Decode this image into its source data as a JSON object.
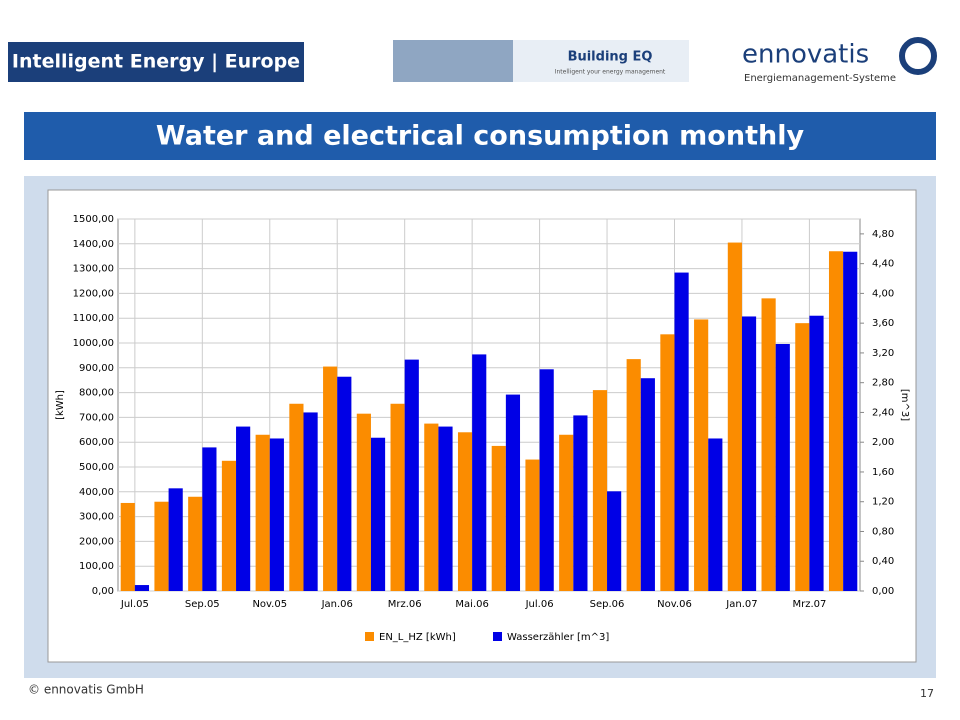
{
  "logos": {
    "left": "Intelligent Energy | Europe",
    "middle": "Building EQ",
    "middle_sub": "Intelligent your energy management",
    "right": "ennovatis",
    "right_sub": "Energiemanagement-Systeme"
  },
  "footer": {
    "copyright": "© ennovatis GmbH",
    "page": "17"
  },
  "chart_data": {
    "type": "bar",
    "title": "Water and electrical consumption monthly",
    "ylabel": "[kWh]",
    "y2label": "[m^3]",
    "categories": [
      "Jul.05",
      null,
      "Sep.05",
      null,
      "Nov.05",
      null,
      "Jan.06",
      null,
      "Mrz.06",
      null,
      "Mai.06",
      null,
      "Jul.06",
      null,
      "Sep.06",
      null,
      "Nov.06",
      null,
      "Jan.07",
      null,
      "Mrz.07",
      null
    ],
    "series": [
      {
        "name": "EN_L_HZ [kWh]",
        "color": "#fb8c00",
        "values": [
          355,
          360,
          380,
          525,
          630,
          755,
          905,
          715,
          755,
          675,
          640,
          585,
          530,
          630,
          810,
          935,
          1035,
          1095,
          1405,
          1180,
          1080,
          1370
        ]
      },
      {
        "name": "Wasserzähler [m^3]",
        "color": "#0000e6",
        "axis": "y2",
        "values": [
          0.08,
          1.38,
          1.93,
          2.21,
          2.05,
          2.4,
          2.88,
          2.06,
          3.11,
          2.21,
          3.18,
          2.64,
          2.98,
          2.36,
          1.34,
          2.86,
          4.28,
          2.05,
          3.69,
          3.32,
          3.7,
          4.56
        ]
      }
    ],
    "ylim": [
      0,
      1500
    ],
    "yticks": [
      {
        "value": 0,
        "label": "0,00"
      },
      {
        "value": 100,
        "label": "100,00"
      },
      {
        "value": 200,
        "label": "200,00"
      },
      {
        "value": 300,
        "label": "300,00"
      },
      {
        "value": 400,
        "label": "400,00"
      },
      {
        "value": 500,
        "label": "500,00"
      },
      {
        "value": 600,
        "label": "600,00"
      },
      {
        "value": 700,
        "label": "700,00"
      },
      {
        "value": 800,
        "label": "800,00"
      },
      {
        "value": 900,
        "label": "900,00"
      },
      {
        "value": 1000,
        "label": "1000,00"
      },
      {
        "value": 1100,
        "label": "1100,00"
      },
      {
        "value": 1200,
        "label": "1200,00"
      },
      {
        "value": 1300,
        "label": "1300,00"
      },
      {
        "value": 1400,
        "label": "1400,00"
      },
      {
        "value": 1500,
        "label": "1500,00"
      }
    ],
    "y2lim": [
      0,
      5
    ],
    "y2ticks": [
      {
        "value": 0,
        "label": "0,00"
      },
      {
        "value": 0.4,
        "label": "0,40"
      },
      {
        "value": 0.8,
        "label": "0,80"
      },
      {
        "value": 1.2,
        "label": "1,20"
      },
      {
        "value": 1.6,
        "label": "1,60"
      },
      {
        "value": 2,
        "label": "2,00"
      },
      {
        "value": 2.4,
        "label": "2,40"
      },
      {
        "value": 2.8,
        "label": "2,80"
      },
      {
        "value": 3.2,
        "label": "3,20"
      },
      {
        "value": 3.6,
        "label": "3,60"
      },
      {
        "value": 4,
        "label": "4,00"
      },
      {
        "value": 4.4,
        "label": "4,40"
      },
      {
        "value": 4.8,
        "label": "4,80"
      }
    ],
    "grid": true,
    "legend": "bottom"
  }
}
